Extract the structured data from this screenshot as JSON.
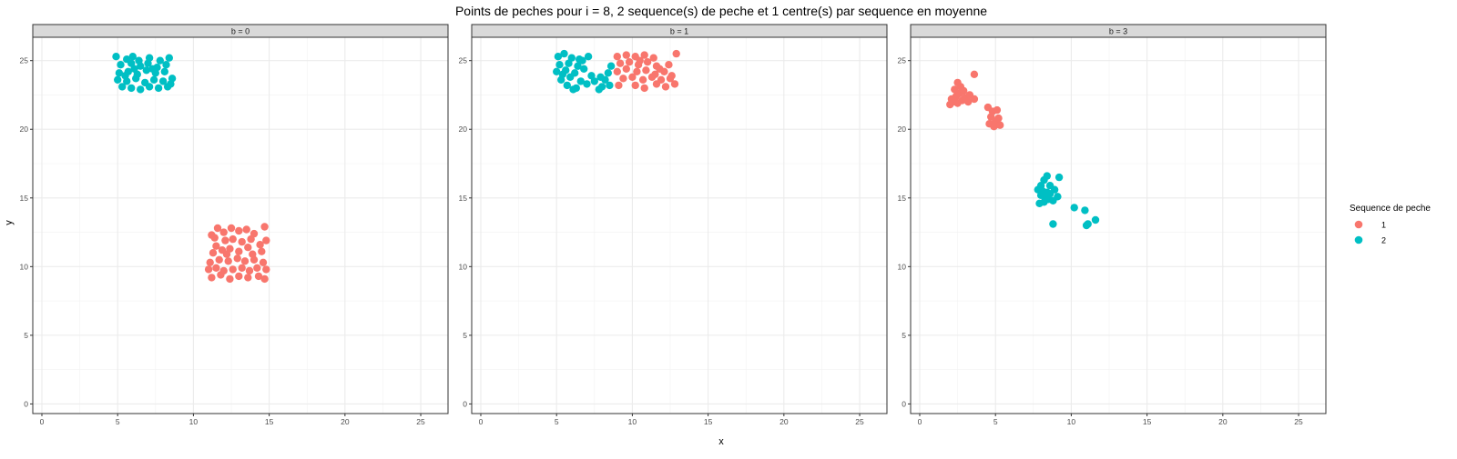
{
  "chart_data": {
    "type": "scatter",
    "title": "Points de peches pour i = 8, 2 sequence(s) de peche et 1 centre(s) par sequence en moyenne",
    "xlabel": "x",
    "ylabel": "y",
    "xlim": [
      -0.6,
      26.8
    ],
    "ylim": [
      -0.7,
      26.7
    ],
    "x_ticks": [
      0,
      5,
      10,
      15,
      20,
      25
    ],
    "y_ticks": [
      0,
      5,
      10,
      15,
      20,
      25
    ],
    "grid": true,
    "legend": {
      "title": "Sequence de peche",
      "placement": "right",
      "entries": [
        {
          "label": "1",
          "color": "#F8766D"
        },
        {
          "label": "2",
          "color": "#00BFC4"
        }
      ]
    },
    "panels": [
      {
        "label": "b = 0",
        "series": [
          {
            "name": "1",
            "color": "#F8766D",
            "points": [
              [
                11.2,
                12.3
              ],
              [
                11.6,
                12.8
              ],
              [
                12.0,
                12.5
              ],
              [
                12.5,
                12.8
              ],
              [
                13.0,
                12.6
              ],
              [
                13.5,
                12.7
              ],
              [
                14.0,
                12.4
              ],
              [
                14.7,
                12.9
              ],
              [
                11.5,
                11.5
              ],
              [
                12.1,
                11.9
              ],
              [
                12.6,
                12.0
              ],
              [
                13.2,
                11.8
              ],
              [
                13.8,
                12.0
              ],
              [
                14.4,
                11.6
              ],
              [
                14.8,
                11.9
              ],
              [
                11.3,
                11.0
              ],
              [
                11.9,
                11.2
              ],
              [
                12.4,
                11.3
              ],
              [
                13.0,
                11.1
              ],
              [
                13.6,
                11.4
              ],
              [
                14.5,
                11.1
              ],
              [
                11.1,
                10.3
              ],
              [
                11.7,
                10.5
              ],
              [
                12.3,
                10.4
              ],
              [
                12.9,
                10.6
              ],
              [
                13.4,
                10.4
              ],
              [
                14.0,
                10.5
              ],
              [
                14.6,
                10.3
              ],
              [
                11.0,
                9.8
              ],
              [
                11.5,
                9.9
              ],
              [
                12.0,
                9.7
              ],
              [
                12.6,
                9.8
              ],
              [
                13.2,
                9.9
              ],
              [
                13.7,
                9.7
              ],
              [
                14.2,
                9.9
              ],
              [
                14.8,
                9.8
              ],
              [
                11.2,
                9.2
              ],
              [
                11.8,
                9.4
              ],
              [
                12.4,
                9.1
              ],
              [
                13.0,
                9.3
              ],
              [
                13.6,
                9.2
              ],
              [
                14.3,
                9.3
              ],
              [
                14.7,
                9.1
              ],
              [
                12.2,
                10.9
              ],
              [
                13.9,
                10.9
              ],
              [
                11.4,
                12.1
              ]
            ]
          },
          {
            "name": "2",
            "color": "#00BFC4",
            "points": [
              [
                4.9,
                25.3
              ],
              [
                5.6,
                25.1
              ],
              [
                6.0,
                25.3
              ],
              [
                6.4,
                25.0
              ],
              [
                7.1,
                25.2
              ],
              [
                7.8,
                25.0
              ],
              [
                8.4,
                25.2
              ],
              [
                5.2,
                24.7
              ],
              [
                5.9,
                24.8
              ],
              [
                6.5,
                24.6
              ],
              [
                7.0,
                24.8
              ],
              [
                7.6,
                24.5
              ],
              [
                8.2,
                24.7
              ],
              [
                5.1,
                24.1
              ],
              [
                5.7,
                24.2
              ],
              [
                6.3,
                24.0
              ],
              [
                6.9,
                24.3
              ],
              [
                7.5,
                24.1
              ],
              [
                8.1,
                24.2
              ],
              [
                5.0,
                23.6
              ],
              [
                5.6,
                23.5
              ],
              [
                6.2,
                23.7
              ],
              [
                6.8,
                23.4
              ],
              [
                7.4,
                23.6
              ],
              [
                8.0,
                23.5
              ],
              [
                8.5,
                23.3
              ],
              [
                5.3,
                23.1
              ],
              [
                5.9,
                23.0
              ],
              [
                6.5,
                22.9
              ],
              [
                7.1,
                23.1
              ],
              [
                7.7,
                23.0
              ],
              [
                8.3,
                23.1
              ],
              [
                6.1,
                24.4
              ],
              [
                7.3,
                24.4
              ],
              [
                5.5,
                23.9
              ],
              [
                8.6,
                23.7
              ]
            ]
          }
        ]
      },
      {
        "label": "b = 1",
        "series": [
          {
            "name": "1",
            "color": "#F8766D",
            "points": [
              [
                9.0,
                25.3
              ],
              [
                9.6,
                25.4
              ],
              [
                10.2,
                25.3
              ],
              [
                10.8,
                25.4
              ],
              [
                11.4,
                25.2
              ],
              [
                12.9,
                25.5
              ],
              [
                9.2,
                24.8
              ],
              [
                9.8,
                24.9
              ],
              [
                10.4,
                24.7
              ],
              [
                11.0,
                24.9
              ],
              [
                11.6,
                24.6
              ],
              [
                12.4,
                24.7
              ],
              [
                9.0,
                24.2
              ],
              [
                9.6,
                24.4
              ],
              [
                10.3,
                24.2
              ],
              [
                10.9,
                24.3
              ],
              [
                11.5,
                24.0
              ],
              [
                12.1,
                24.2
              ],
              [
                12.6,
                23.9
              ],
              [
                9.4,
                23.7
              ],
              [
                10.0,
                23.8
              ],
              [
                10.7,
                23.6
              ],
              [
                11.3,
                23.8
              ],
              [
                11.9,
                23.6
              ],
              [
                12.5,
                23.7
              ],
              [
                9.1,
                23.2
              ],
              [
                10.2,
                23.2
              ],
              [
                10.8,
                23.0
              ],
              [
                11.6,
                23.3
              ],
              [
                12.2,
                23.1
              ],
              [
                12.8,
                23.3
              ],
              [
                10.5,
                25.0
              ],
              [
                11.8,
                24.4
              ]
            ]
          },
          {
            "name": "2",
            "color": "#00BFC4",
            "points": [
              [
                5.1,
                25.3
              ],
              [
                5.5,
                25.5
              ],
              [
                6.0,
                25.2
              ],
              [
                6.5,
                25.1
              ],
              [
                7.1,
                25.3
              ],
              [
                5.2,
                24.7
              ],
              [
                5.8,
                24.8
              ],
              [
                6.4,
                24.6
              ],
              [
                5.0,
                24.2
              ],
              [
                5.6,
                24.3
              ],
              [
                6.2,
                24.1
              ],
              [
                6.8,
                24.4
              ],
              [
                5.3,
                23.6
              ],
              [
                5.9,
                23.8
              ],
              [
                6.6,
                23.5
              ],
              [
                7.3,
                23.9
              ],
              [
                7.9,
                23.8
              ],
              [
                8.4,
                24.1
              ],
              [
                5.7,
                23.2
              ],
              [
                6.3,
                23.0
              ],
              [
                6.1,
                22.9
              ],
              [
                7.0,
                23.3
              ],
              [
                7.5,
                23.5
              ],
              [
                8.0,
                23.1
              ],
              [
                8.5,
                23.2
              ],
              [
                7.8,
                22.9
              ],
              [
                8.6,
                24.6
              ],
              [
                5.4,
                24.0
              ],
              [
                6.7,
                25.0
              ],
              [
                8.2,
                23.6
              ]
            ]
          }
        ]
      },
      {
        "label": "b = 3",
        "series": [
          {
            "name": "1",
            "color": "#F8766D",
            "points": [
              [
                2.0,
                21.8
              ],
              [
                2.2,
                22.0
              ],
              [
                2.5,
                21.9
              ],
              [
                2.8,
                22.1
              ],
              [
                2.4,
                22.4
              ],
              [
                2.6,
                22.6
              ],
              [
                2.3,
                22.9
              ],
              [
                2.7,
                23.1
              ],
              [
                2.5,
                23.4
              ],
              [
                2.9,
                22.8
              ],
              [
                3.0,
                22.3
              ],
              [
                3.3,
                22.5
              ],
              [
                3.6,
                22.2
              ],
              [
                3.2,
                22.0
              ],
              [
                3.6,
                24.0
              ],
              [
                2.1,
                22.2
              ],
              [
                4.5,
                21.6
              ],
              [
                4.8,
                21.3
              ],
              [
                5.1,
                21.4
              ],
              [
                4.7,
                20.9
              ],
              [
                5.0,
                20.6
              ],
              [
                4.6,
                20.4
              ],
              [
                4.9,
                20.2
              ],
              [
                5.3,
                20.3
              ],
              [
                5.2,
                20.8
              ]
            ]
          },
          {
            "name": "2",
            "color": "#00BFC4",
            "points": [
              [
                7.8,
                15.6
              ],
              [
                8.0,
                15.9
              ],
              [
                8.2,
                16.3
              ],
              [
                8.4,
                16.6
              ],
              [
                8.0,
                15.2
              ],
              [
                8.3,
                15.0
              ],
              [
                8.6,
                15.3
              ],
              [
                8.9,
                15.6
              ],
              [
                9.1,
                15.1
              ],
              [
                7.9,
                14.6
              ],
              [
                8.2,
                14.7
              ],
              [
                8.5,
                14.9
              ],
              [
                8.8,
                14.8
              ],
              [
                8.6,
                15.9
              ],
              [
                9.2,
                16.5
              ],
              [
                8.8,
                13.1
              ],
              [
                10.2,
                14.3
              ],
              [
                10.9,
                14.1
              ],
              [
                11.0,
                13.0
              ],
              [
                11.1,
                13.1
              ],
              [
                11.6,
                13.4
              ],
              [
                8.1,
                15.5
              ],
              [
                8.4,
                15.4
              ]
            ]
          }
        ]
      }
    ]
  }
}
